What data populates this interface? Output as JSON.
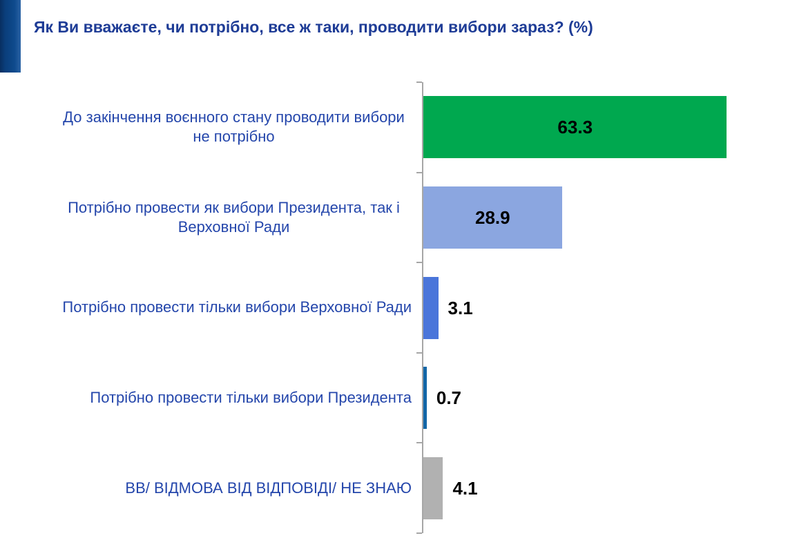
{
  "chart_data": {
    "type": "bar",
    "orientation": "horizontal",
    "title": "Як Ви вважаєте, чи потрібно, все ж таки, проводити вибори зараз? (%)",
    "title_color": "#1e3c96",
    "categories": [
      "До закінчення воєнного стану проводити вибори не потрібно",
      "Потрібно провести як вибори Президента, так і Верховної Ради",
      "Потрібно провести тільки вибори Верховної Ради",
      "Потрібно провести тільки вибори Президента",
      "ВВ/ ВІДМОВА ВІД ВІДПОВІДІ/ НЕ ЗНАЮ"
    ],
    "values": [
      63.3,
      28.9,
      3.1,
      0.7,
      4.1
    ],
    "value_labels": [
      "63.3",
      "28.9",
      "3.1",
      "0.7",
      "4.1"
    ],
    "bar_colors": [
      "#00a84f",
      "#8ba6e0",
      "#4a75da",
      "#1266a7",
      "#b1b1b1"
    ],
    "category_label_color": "#2446ab",
    "value_label_color": "#000000",
    "axis_line_color": "#a6a6a6",
    "xlim": [
      0,
      70
    ],
    "grid": false,
    "legend": false,
    "value_label_placement": "inside-center on large bars, outside-right on small bars"
  },
  "decor": {
    "corner_accent_colors": [
      "#082f60",
      "#2a62a4"
    ]
  }
}
